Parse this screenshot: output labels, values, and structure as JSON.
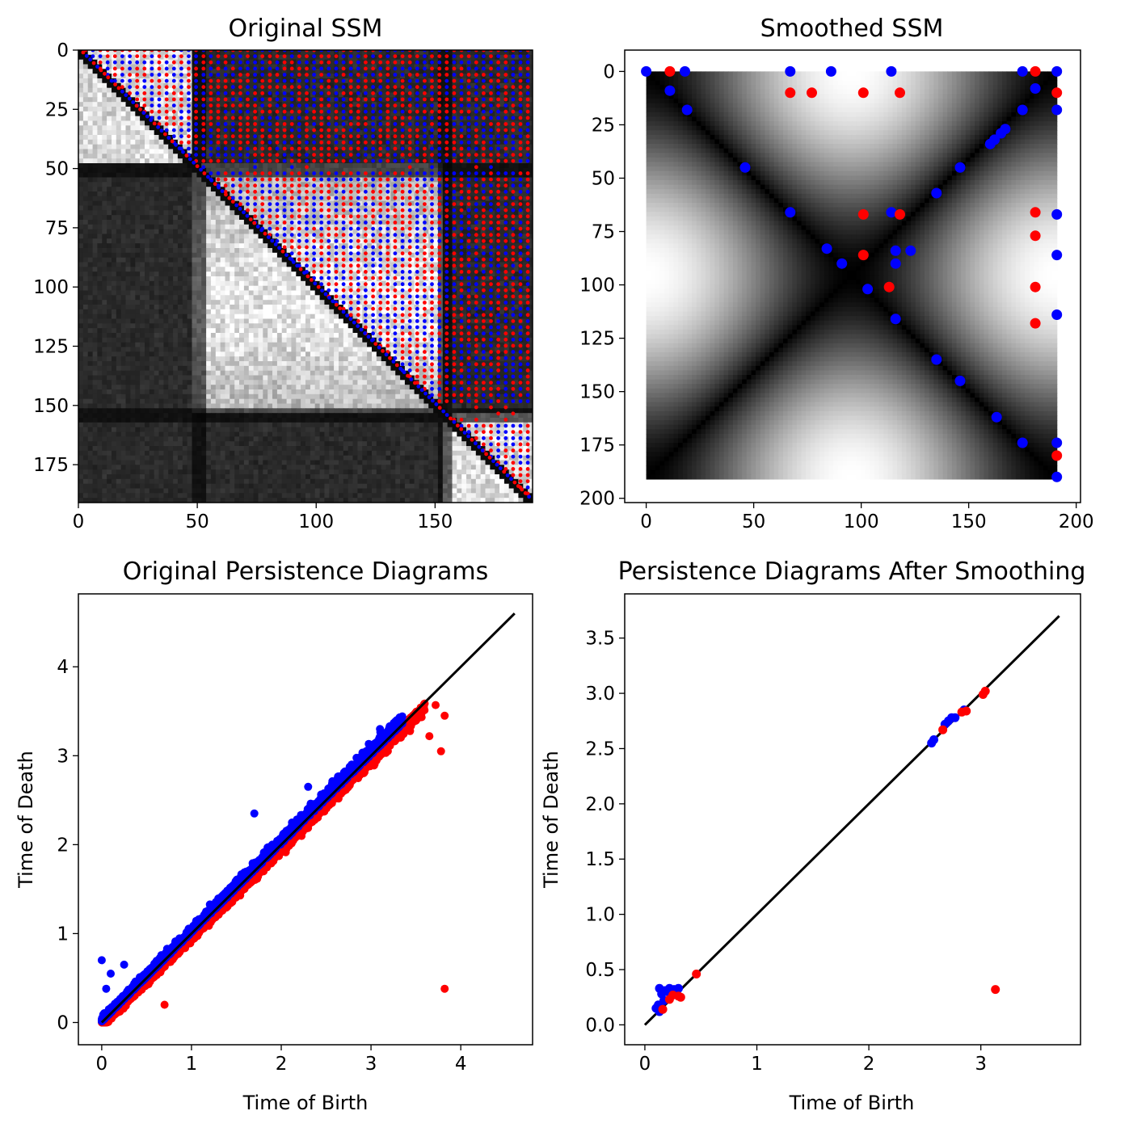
{
  "chart_data": [
    {
      "id": "original_ssm",
      "type": "heatmap",
      "title": "Original SSM",
      "xlabel": "",
      "ylabel": "",
      "xlim": [
        0,
        191
      ],
      "ylim": [
        191,
        0
      ],
      "xticks": [
        0,
        50,
        100,
        150
      ],
      "yticks": [
        0,
        25,
        50,
        75,
        100,
        125,
        150,
        175
      ],
      "image": "grayscale self-similarity matrix (191x191); bright square blocks around indices 10-45, 55-150 and 160-190, dark bands near index 50 and 155",
      "series": [
        {
          "name": "blue markers",
          "color": "#0000ff",
          "description": "dense upper-triangle grid of local maxima"
        },
        {
          "name": "red markers",
          "color": "#ff0000",
          "description": "dense upper-triangle grid of local minima"
        }
      ]
    },
    {
      "id": "smoothed_ssm",
      "type": "heatmap",
      "title": "Smoothed SSM",
      "xlabel": "",
      "ylabel": "",
      "xlim": [
        -10,
        202
      ],
      "ylim": [
        202,
        -10
      ],
      "xticks": [
        0,
        50,
        100,
        150,
        200
      ],
      "yticks": [
        0,
        25,
        50,
        75,
        100,
        125,
        150,
        175,
        200
      ],
      "image": "smoothed grayscale SSM (191x191) with dark X-shaped valleys along both diagonals and bright lobes at the four edges",
      "series": [
        {
          "name": "blue markers",
          "color": "#0000ff",
          "points": [
            [
              0,
              0
            ],
            [
              18,
              0
            ],
            [
              67,
              0
            ],
            [
              86,
              0
            ],
            [
              114,
              0
            ],
            [
              175,
              0
            ],
            [
              191,
              0
            ],
            [
              11,
              9
            ],
            [
              19,
              18
            ],
            [
              181,
              8
            ],
            [
              175,
              18
            ],
            [
              191,
              18
            ],
            [
              46,
              45
            ],
            [
              146,
              45
            ],
            [
              135,
              57
            ],
            [
              167,
              27
            ],
            [
              165,
              29
            ],
            [
              162,
              32
            ],
            [
              160,
              34
            ],
            [
              67,
              66
            ],
            [
              114,
              66
            ],
            [
              191,
              67
            ],
            [
              84,
              83
            ],
            [
              91,
              90
            ],
            [
              116,
              84
            ],
            [
              123,
              84
            ],
            [
              116,
              90
            ],
            [
              191,
              86
            ],
            [
              103,
              102
            ],
            [
              116,
              116
            ],
            [
              191,
              114
            ],
            [
              135,
              135
            ],
            [
              146,
              145
            ],
            [
              163,
              162
            ],
            [
              175,
              174
            ],
            [
              191,
              174
            ],
            [
              191,
              190
            ]
          ]
        },
        {
          "name": "red markers",
          "color": "#ff0000",
          "points": [
            [
              11,
              0
            ],
            [
              181,
              0
            ],
            [
              67,
              10
            ],
            [
              77,
              10
            ],
            [
              101,
              10
            ],
            [
              118,
              10
            ],
            [
              191,
              10
            ],
            [
              101,
              67
            ],
            [
              118,
              67
            ],
            [
              181,
              66
            ],
            [
              181,
              77
            ],
            [
              101,
              86
            ],
            [
              113,
              101
            ],
            [
              181,
              101
            ],
            [
              181,
              118
            ],
            [
              191,
              180
            ]
          ]
        }
      ]
    },
    {
      "id": "original_pd",
      "type": "scatter",
      "title": "Original Persistence Diagrams",
      "xlabel": "Time of Birth",
      "ylabel": "Time of Death",
      "xlim": [
        -0.26,
        4.8
      ],
      "ylim": [
        -0.25,
        4.82
      ],
      "xticks": [
        0,
        1,
        2,
        3,
        4
      ],
      "yticks": [
        0,
        1,
        2,
        3,
        4
      ],
      "diagonal": [
        [
          0,
          0
        ],
        [
          4.6,
          4.6
        ]
      ],
      "series": [
        {
          "name": "blue",
          "color": "#0000ff",
          "description": "thousands of points just above the diagonal, births 0 to 3.35",
          "outliers": [
            [
              0.0,
              0.7
            ],
            [
              0.05,
              0.38
            ],
            [
              0.1,
              0.55
            ],
            [
              0.25,
              0.65
            ],
            [
              1.7,
              2.35
            ],
            [
              2.3,
              2.65
            ],
            [
              3.1,
              3.3
            ]
          ]
        },
        {
          "name": "red",
          "color": "#ff0000",
          "description": "thousands of points just below the diagonal, births 0 to 3.6",
          "outliers": [
            [
              3.82,
              0.38
            ],
            [
              3.78,
              3.05
            ],
            [
              3.82,
              3.45
            ],
            [
              3.72,
              3.57
            ],
            [
              3.65,
              3.22
            ],
            [
              0.7,
              0.2
            ]
          ]
        }
      ]
    },
    {
      "id": "smoothed_pd",
      "type": "scatter",
      "title": "Persistence Diagrams After Smoothing",
      "xlabel": "Time of Birth",
      "ylabel": "Time of Death",
      "xlim": [
        -0.18,
        3.89
      ],
      "ylim": [
        -0.18,
        3.9
      ],
      "xticks": [
        0,
        1,
        2,
        3
      ],
      "yticks": [
        0.0,
        0.5,
        1.0,
        1.5,
        2.0,
        2.5,
        3.0,
        3.5
      ],
      "diagonal": [
        [
          0,
          0
        ],
        [
          3.7,
          3.7
        ]
      ],
      "series": [
        {
          "name": "blue",
          "color": "#0000ff",
          "points": [
            [
              0.1,
              0.15
            ],
            [
              0.12,
              0.18
            ],
            [
              0.13,
              0.33
            ],
            [
              0.15,
              0.28
            ],
            [
              0.17,
              0.22
            ],
            [
              0.18,
              0.31
            ],
            [
              0.2,
              0.3
            ],
            [
              0.22,
              0.33
            ],
            [
              0.24,
              0.28
            ],
            [
              0.26,
              0.32
            ],
            [
              0.28,
              0.31
            ],
            [
              0.3,
              0.33
            ],
            [
              0.13,
              0.12
            ],
            [
              2.56,
              2.55
            ],
            [
              2.58,
              2.58
            ],
            [
              2.68,
              2.72
            ],
            [
              2.71,
              2.75
            ],
            [
              2.74,
              2.78
            ],
            [
              2.77,
              2.78
            ],
            [
              2.85,
              2.85
            ]
          ]
        },
        {
          "name": "red",
          "color": "#ff0000",
          "points": [
            [
              0.16,
              0.14
            ],
            [
              0.22,
              0.23
            ],
            [
              0.25,
              0.27
            ],
            [
              0.3,
              0.26
            ],
            [
              0.32,
              0.25
            ],
            [
              0.46,
              0.46
            ],
            [
              2.66,
              2.67
            ],
            [
              2.83,
              2.83
            ],
            [
              2.87,
              2.84
            ],
            [
              3.02,
              2.99
            ],
            [
              3.04,
              3.02
            ],
            [
              3.13,
              0.32
            ]
          ]
        }
      ]
    }
  ]
}
